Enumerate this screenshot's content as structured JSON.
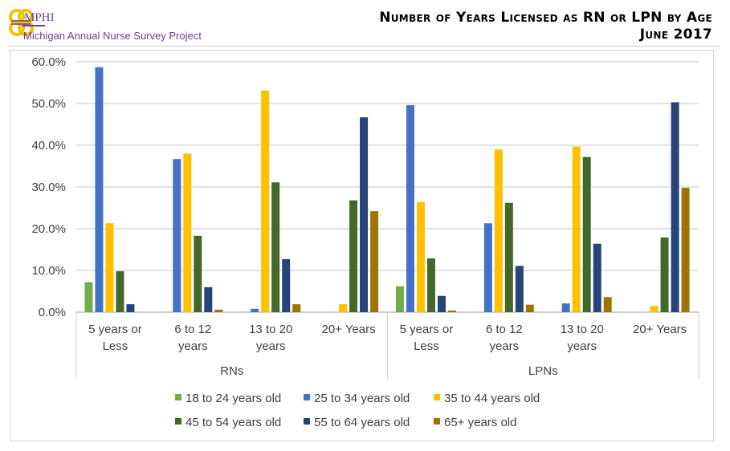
{
  "header": {
    "brand": "MPHI",
    "org": "Michigan Annual Nurse Survey Project",
    "title_line1": "Number of Years Licensed as RN or LPN by Age",
    "title_line2": "June 2017"
  },
  "chart_data": {
    "type": "bar",
    "title": "Number of Years Licensed as RN or LPN by Age",
    "subtitle": "June 2017",
    "ylim": [
      0,
      60
    ],
    "yticks": [
      "0.0%",
      "10.0%",
      "20.0%",
      "30.0%",
      "40.0%",
      "50.0%",
      "60.0%"
    ],
    "grid": true,
    "legend_position": "bottom",
    "groups": [
      "RNs",
      "LPNs"
    ],
    "categories": [
      [
        "5 years or",
        "Less"
      ],
      [
        "6 to 12",
        "years"
      ],
      [
        "13 to 20",
        "years"
      ],
      [
        "20+ Years",
        ""
      ],
      [
        "5 years or",
        "Less"
      ],
      [
        "6 to 12",
        "years"
      ],
      [
        "13 to 20",
        "years"
      ],
      [
        "20+ Years",
        ""
      ]
    ],
    "series": [
      {
        "name": "18 to 24 years old",
        "color": "#70AD47",
        "values": [
          7.2,
          0,
          0,
          0,
          6.2,
          0,
          0,
          0
        ]
      },
      {
        "name": "25 to 34 years old",
        "color": "#4472C4",
        "values": [
          58.7,
          36.7,
          0.8,
          0,
          49.6,
          21.3,
          2.1,
          0
        ]
      },
      {
        "name": "35 to 44 years old",
        "color": "#FFC000",
        "values": [
          21.3,
          38.0,
          53.1,
          1.9,
          26.4,
          39.0,
          39.7,
          1.5
        ]
      },
      {
        "name": "45 to 54 years old",
        "color": "#43682B",
        "values": [
          9.8,
          18.3,
          31.1,
          26.8,
          12.9,
          26.2,
          37.2,
          17.9
        ]
      },
      {
        "name": "55 to 64 years old",
        "color": "#264478",
        "values": [
          1.9,
          6.0,
          12.7,
          46.7,
          3.9,
          11.1,
          16.4,
          50.3
        ]
      },
      {
        "name": "65+ years old",
        "color": "#9E7501",
        "values": [
          0,
          0.6,
          1.9,
          24.2,
          0.4,
          1.8,
          3.6,
          29.8
        ]
      }
    ]
  }
}
